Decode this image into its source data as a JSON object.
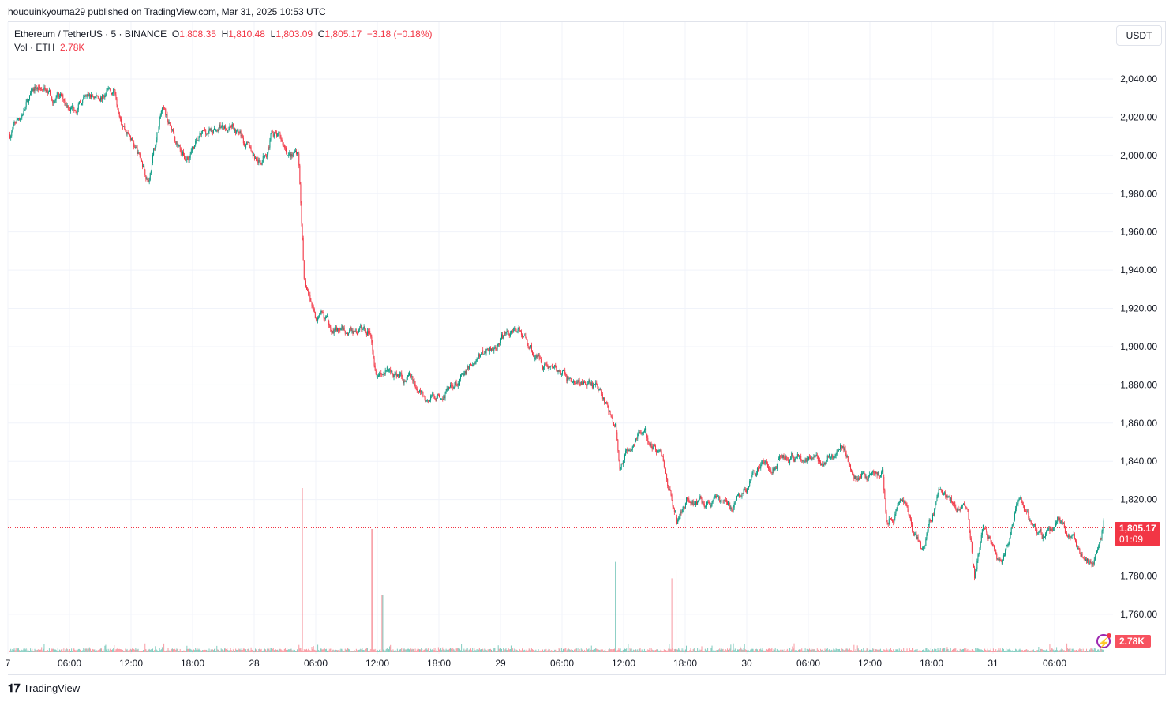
{
  "published": "hououinkyouma29 published on TradingView.com, Mar 31, 2025 10:53 UTC",
  "legend": {
    "symbol": "Ethereum / TetherUS · 5 · BINANCE",
    "o_label": "O",
    "o": "1,808.35",
    "h_label": "H",
    "h": "1,810.48",
    "l_label": "L",
    "l": "1,803.09",
    "c_label": "C",
    "c": "1,805.17",
    "change": "−3.18 (−0.18%)",
    "vol_label": "Vol · ETH",
    "vol": "2.78K"
  },
  "currency_button": "USDT",
  "last_price_label": "1,805.17",
  "countdown": "01:09",
  "last_volume_label": "2.78K",
  "footer_brand": "TradingView",
  "colors": {
    "up": "#089981",
    "down": "#f23645"
  },
  "chart_data": {
    "type": "candlestick",
    "interval_minutes": 5,
    "time_unit": "hours since Mar 27 00:00 UTC",
    "price_path": [
      [
        0.2,
        2011
      ],
      [
        2.7,
        2035
      ],
      [
        6.2,
        2026
      ],
      [
        10.4,
        2034
      ],
      [
        11.5,
        2015
      ],
      [
        13.7,
        1988
      ],
      [
        15,
        2023
      ],
      [
        17.3,
        1999
      ],
      [
        19.2,
        2011
      ],
      [
        21.9,
        2017
      ],
      [
        24.6,
        1995
      ],
      [
        25.8,
        2013
      ],
      [
        27.7,
        1999
      ],
      [
        28.3,
        2003
      ],
      [
        28.7,
        1957
      ],
      [
        28.85,
        1933
      ],
      [
        30,
        1916
      ],
      [
        32.3,
        1908
      ],
      [
        35.4,
        1908
      ],
      [
        35.8,
        1891
      ],
      [
        36.9,
        1887
      ],
      [
        39.2,
        1883
      ],
      [
        40.8,
        1871
      ],
      [
        43.1,
        1879
      ],
      [
        46.9,
        1900
      ],
      [
        49.6,
        1910
      ],
      [
        51.5,
        1895
      ],
      [
        54.6,
        1883
      ],
      [
        57.7,
        1877
      ],
      [
        59.2,
        1858
      ],
      [
        59.6,
        1838
      ],
      [
        61.5,
        1858
      ],
      [
        63.8,
        1842
      ],
      [
        65.2,
        1809
      ],
      [
        66.2,
        1821
      ],
      [
        70.8,
        1817
      ],
      [
        73.5,
        1838
      ],
      [
        76.9,
        1842
      ],
      [
        79.2,
        1840
      ],
      [
        81.2,
        1846
      ],
      [
        82.7,
        1833
      ],
      [
        85.2,
        1833
      ],
      [
        85.6,
        1809
      ],
      [
        87.3,
        1817
      ],
      [
        89.1,
        1792
      ],
      [
        90.8,
        1825
      ],
      [
        93.5,
        1813
      ],
      [
        94.2,
        1780
      ],
      [
        95,
        1805
      ],
      [
        96.8,
        1784
      ],
      [
        98.5,
        1817
      ],
      [
        100.8,
        1800
      ],
      [
        102.3,
        1809
      ],
      [
        105.8,
        1784
      ],
      [
        106.8,
        1807
      ]
    ],
    "volume_spikes_k": [
      [
        28.7,
        40
      ],
      [
        35.5,
        30
      ],
      [
        36.5,
        14
      ],
      [
        59.2,
        22
      ],
      [
        64.7,
        18
      ],
      [
        65.1,
        20
      ]
    ],
    "y_ticks": [
      "2,040.00",
      "2,020.00",
      "2,000.00",
      "1,980.00",
      "1,960.00",
      "1,940.00",
      "1,920.00",
      "1,900.00",
      "1,880.00",
      "1,860.00",
      "1,840.00",
      "1,820.00",
      "1,780.00",
      "1,760.00"
    ],
    "y_tick_values": [
      2040,
      2020,
      2000,
      1980,
      1960,
      1940,
      1920,
      1900,
      1880,
      1860,
      1840,
      1820,
      1780,
      1760
    ],
    "x_ticks": [
      "7",
      "06:00",
      "12:00",
      "18:00",
      "28",
      "06:00",
      "12:00",
      "18:00",
      "29",
      "06:00",
      "12:00",
      "18:00",
      "30",
      "06:00",
      "12:00",
      "18:00",
      "31",
      "06:00"
    ],
    "x_tick_hours": [
      0,
      6,
      12,
      18,
      24,
      30,
      36,
      42,
      48,
      54,
      60,
      66,
      72,
      78,
      84,
      90,
      96,
      102
    ],
    "last_price": 1805.17
  }
}
